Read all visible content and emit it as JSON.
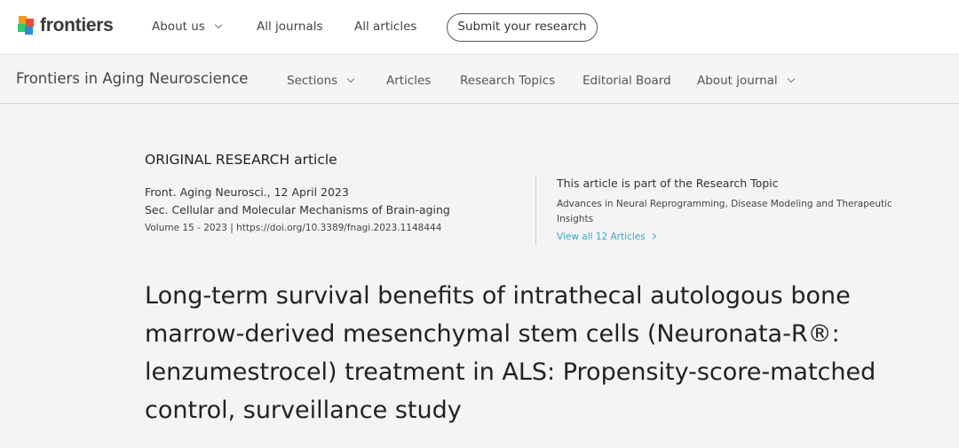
{
  "header": {
    "logo_text": "frontiers",
    "nav": [
      {
        "label": "About us"
      },
      {
        "label": "All journals"
      },
      {
        "label": "All articles"
      }
    ],
    "submit_label": "Submit your research"
  },
  "subheader": {
    "journal": "Frontiers in Aging Neuroscience",
    "nav": [
      {
        "label": "Sections"
      },
      {
        "label": "Articles"
      },
      {
        "label": "Research Topics"
      },
      {
        "label": "Editorial Board"
      },
      {
        "label": "About journal"
      }
    ]
  },
  "article": {
    "type": "ORIGINAL RESEARCH article",
    "citation": "Front. Aging Neurosci., 12 April 2023",
    "section": "Sec. Cellular and Molecular Mechanisms of Brain-aging",
    "volume_doi": "Volume 15 - 2023 | https://doi.org/10.3389/fnagi.2023.1148444",
    "title": "Long-term survival benefits of intrathecal autologous bone marrow-derived mesenchymal stem cells (Neuronata-R®: lenzumestrocel) treatment in ALS: Propensity-score-matched control, surveillance study"
  },
  "research_topic": {
    "heading": "This article is part of the Research Topic",
    "name": "Advances in Neural Reprogramming, Disease Modeling and Therapeutic Insights",
    "link": "View all 12 Articles"
  },
  "colors": {
    "link": "#3aa8c1",
    "background": "#f4f4f4"
  }
}
